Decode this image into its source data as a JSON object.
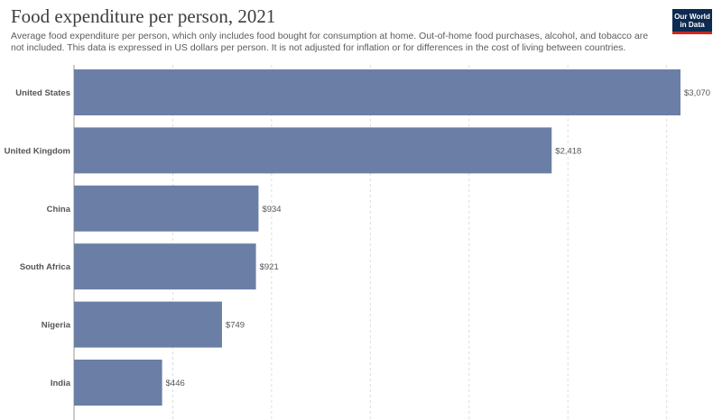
{
  "header": {
    "title": "Food expenditure per person, 2021",
    "subtitle": "Average food expenditure per person, which only includes food bought for consumption at home. Out-of-home food purchases, alcohol, and tobacco are not included. This data is expressed in US dollars per person. It is not adjusted for inflation or for differences in the cost of living between countries."
  },
  "logo": {
    "line1": "Our World",
    "line2": "in Data"
  },
  "chart_data": {
    "type": "bar",
    "orientation": "horizontal",
    "title": "Food expenditure per person, 2021",
    "categories": [
      "United States",
      "United Kingdom",
      "China",
      "South Africa",
      "Nigeria",
      "India"
    ],
    "values": [
      3070,
      2418,
      934,
      921,
      749,
      446
    ],
    "value_labels": [
      "$3,070",
      "$2,418",
      "$934",
      "$921",
      "$749",
      "$446"
    ],
    "xlim": [
      0,
      3070
    ],
    "grid": "vertical dashed",
    "bar_color": "#6b7ea6"
  }
}
